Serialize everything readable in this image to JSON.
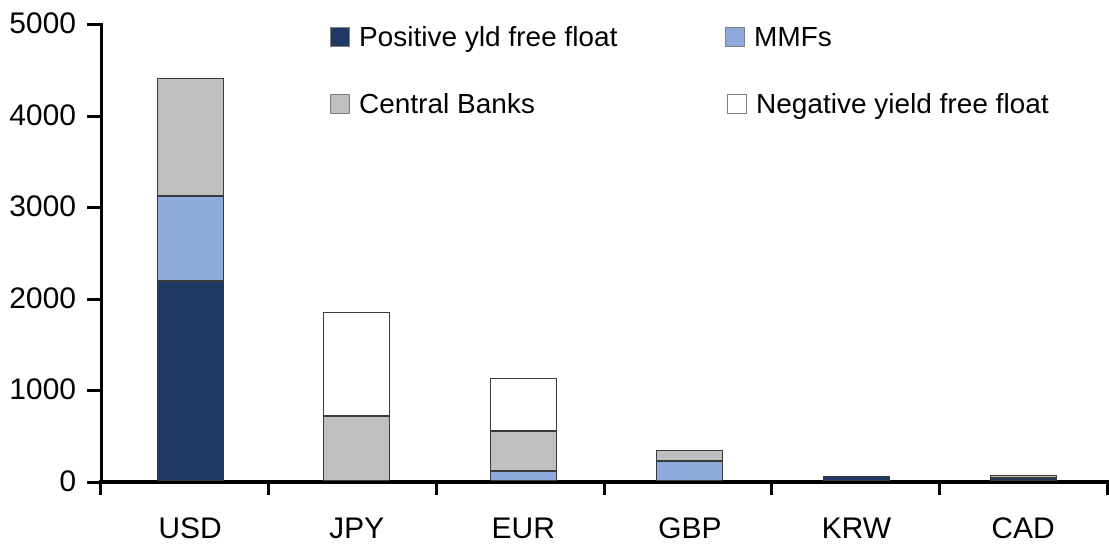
{
  "chart_data": {
    "type": "bar",
    "stacked": true,
    "title": "",
    "xlabel": "",
    "ylabel": "",
    "categories": [
      "USD",
      "JPY",
      "EUR",
      "GBP",
      "KRW",
      "CAD"
    ],
    "series": [
      {
        "name": "Positive yld free float",
        "color": "#1F3864",
        "values": [
          2180,
          0,
          0,
          0,
          50,
          35
        ]
      },
      {
        "name": "MMFs",
        "color": "#8EA9DB",
        "values": [
          935,
          0,
          110,
          220,
          0,
          0
        ]
      },
      {
        "name": "Central Banks",
        "color": "#BFBFBF",
        "values": [
          1285,
          705,
          435,
          120,
          0,
          30
        ]
      },
      {
        "name": "Negative yield free float",
        "color": "#FFFFFF",
        "values": [
          0,
          1145,
          580,
          0,
          0,
          0
        ]
      }
    ],
    "totals": {
      "USD": 4400,
      "JPY": 1850,
      "EUR": 1125,
      "GBP": 340,
      "KRW": 50,
      "CAD": 65
    },
    "ylim": [
      0,
      5000
    ],
    "y_ticks": [
      0,
      1000,
      2000,
      3000,
      4000,
      5000
    ],
    "y_tick_labels": [
      "0",
      "1000",
      "2000",
      "3000",
      "4000",
      "5000"
    ],
    "grid": false,
    "legend_position": "top-inside",
    "legend_rows": [
      [
        "Positive yld free float",
        "MMFs"
      ],
      [
        "Central Banks",
        "Negative yield free float"
      ]
    ]
  },
  "legend": {
    "items": [
      {
        "label": "Positive yld free float",
        "color": "#1F3864"
      },
      {
        "label": "MMFs",
        "color": "#8EA9DB"
      },
      {
        "label": "Central Banks",
        "color": "#BFBFBF"
      },
      {
        "label": "Negative yield free float",
        "color": "#FFFFFF"
      }
    ]
  }
}
